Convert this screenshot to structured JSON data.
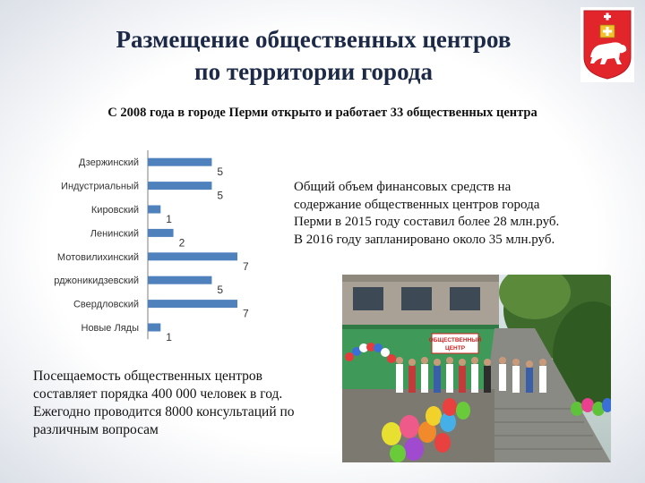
{
  "title": {
    "line1": "Размещение общественных центров",
    "line2": "по территории города"
  },
  "subtitle": "С 2008 года в городе Перми открыто и работает 33 общественных центра",
  "chart_data": {
    "type": "bar",
    "orientation": "horizontal",
    "categories": [
      "Дзержинский",
      "Индустриальный",
      "Кировский",
      "Ленинский",
      "Мотовилихинский",
      "Орджоникидзевский",
      "Свердловский",
      "Новые Ляды"
    ],
    "values": [
      5,
      5,
      1,
      2,
      7,
      5,
      7,
      1
    ],
    "xlim": [
      0,
      7
    ],
    "grid": false,
    "legend": "none",
    "colors": {
      "bar": "#4f81bd",
      "axis": "#7f7f7f",
      "label": "#333333"
    }
  },
  "finance": {
    "line1": "Общий объем финансовых средств на",
    "line2": "содержание общественных центров города",
    "line3": "Перми в 2015 году составил более 28 млн.руб.",
    "line4": "В 2016 году запланировано около 35 млн.руб."
  },
  "attendance": {
    "line1": "Посещаемость общественных центров",
    "line2": "составляет порядка 400 000 человек в год.",
    "line3": "Ежегодно проводится 8000 консультаций по",
    "line4": "различным вопросам"
  },
  "photo": {
    "sign": "ОБЩЕСТВЕННЫЙ ЦЕНТР"
  },
  "emblem": {
    "icon": "perm-coat-of-arms-icon",
    "colors": {
      "field": "#e2252b",
      "bear": "#ffffff",
      "gospel": "#f3c12c"
    }
  }
}
